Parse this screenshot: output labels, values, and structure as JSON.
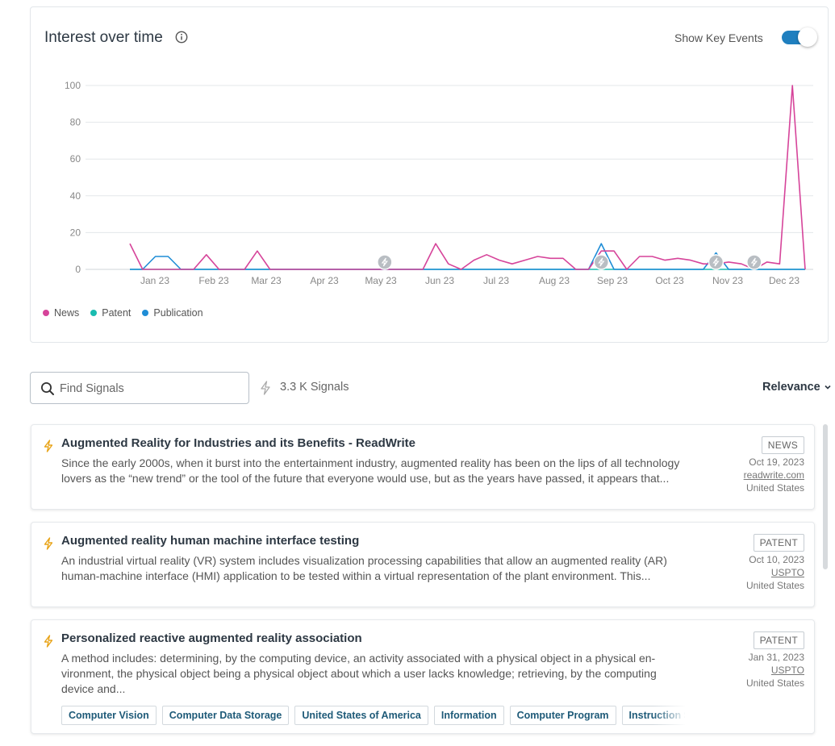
{
  "chart_card": {
    "title": "Interest over time",
    "key_events_label": "Show Key Events",
    "key_events_on": true
  },
  "chart_data": {
    "type": "line",
    "ylim": [
      0,
      100
    ],
    "yticks": [
      0,
      20,
      40,
      60,
      80,
      100
    ],
    "x_labels": [
      "Jan 23",
      "Feb 23",
      "Mar 23",
      "Apr 23",
      "May 23",
      "Jun 23",
      "Jul 23",
      "Aug 23",
      "Sep 23",
      "Oct 23",
      "Nov 23",
      "Dec 23"
    ],
    "grid": true,
    "legend_position": "bottom-left",
    "series": [
      {
        "name": "News",
        "color": "#d6449a",
        "values": [
          14,
          0,
          0,
          0,
          0,
          0,
          8,
          0,
          0,
          0,
          10,
          0,
          0,
          0,
          0,
          0,
          0,
          0,
          0,
          0,
          0,
          0,
          0,
          0,
          14,
          3,
          0,
          5,
          8,
          5,
          3,
          5,
          7,
          6,
          6,
          0,
          0,
          10,
          10,
          0,
          7,
          7,
          5,
          6,
          5,
          3,
          3,
          4,
          3,
          0,
          4,
          3,
          100,
          0
        ]
      },
      {
        "name": "Patent",
        "color": "#1abcb0",
        "values": [
          0,
          0,
          0,
          0,
          0,
          0,
          0,
          0,
          0,
          0,
          0,
          0,
          0,
          0,
          0,
          0,
          0,
          0,
          0,
          0,
          0,
          0,
          0,
          0,
          0,
          0,
          0,
          0,
          0,
          0,
          0,
          0,
          0,
          0,
          0,
          0,
          0,
          0,
          0,
          0,
          0,
          0,
          0,
          0,
          0,
          0,
          0,
          0,
          0,
          0,
          0,
          0,
          0,
          0
        ]
      },
      {
        "name": "Publication",
        "color": "#1f8dd6",
        "values": [
          0,
          0,
          7,
          7,
          0,
          0,
          0,
          0,
          0,
          0,
          0,
          0,
          0,
          0,
          0,
          0,
          0,
          0,
          0,
          0,
          0,
          0,
          0,
          0,
          0,
          0,
          0,
          0,
          0,
          0,
          0,
          0,
          0,
          0,
          0,
          0,
          0,
          14,
          0,
          0,
          0,
          0,
          0,
          0,
          0,
          0,
          9,
          0,
          0,
          0,
          0,
          0,
          0,
          0
        ]
      }
    ],
    "key_event_weeks": [
      20,
      37,
      46,
      49
    ]
  },
  "search": {
    "placeholder": "Find Signals",
    "value": ""
  },
  "signal_count": "3.3 K Signals",
  "sort": {
    "label": "Relevance"
  },
  "results": [
    {
      "title": "Augmented Reality for Industries and its Benefits - ReadWrite",
      "snippet": "Since the early 2000s, when it burst into the entertainment industry, augmented reality has been on the lips of all tech­nology lovers as the “new trend” or the tool of the future that everyone would use, but as the years have passed, it ap­pears that...",
      "type": "NEWS",
      "date": "Oct 19, 2023",
      "source": "readwrite.com",
      "country": "United States",
      "tags": []
    },
    {
      "title": "Augmented reality human machine interface testing",
      "snippet": "An industrial virtual reality (VR) system includes visualization processing capabilities that allow an augmented reality (AR) human-machine interface (HMI) application to be tested within a virtual representation of the plant environment. This...",
      "type": "PATENT",
      "date": "Oct 10, 2023",
      "source": "USPTO",
      "country": "United States",
      "tags": []
    },
    {
      "title": "Personalized reactive augmented reality association",
      "snippet": "A method includes: determining, by the computing device, an activity associated with a physical object in a physical en­vironment, the physical object being a physical object about which a user lacks knowledge; retrieving, by the comput­ing device and...",
      "type": "PATENT",
      "date": "Jan 31, 2023",
      "source": "USPTO",
      "country": "United States",
      "tags": [
        "Computer Vision",
        "Computer Data Storage",
        "United States of America",
        "Information",
        "Computer Program",
        "Instruction Set A"
      ]
    }
  ],
  "icons": {
    "info": "info-icon",
    "search": "search-icon",
    "signal": "lightning-icon",
    "sort": "chevron-down-icon"
  }
}
